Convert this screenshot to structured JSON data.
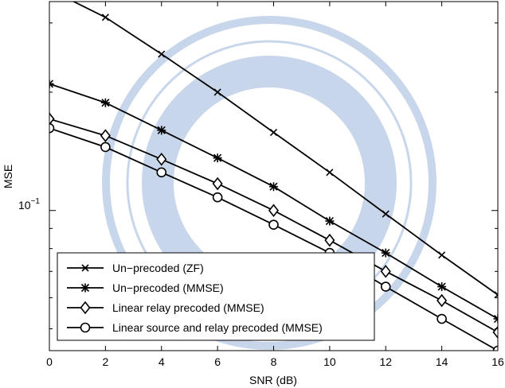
{
  "chart_data": {
    "type": "line",
    "title": "",
    "xlabel": "SNR (dB)",
    "ylabel": "MSE",
    "xlim": [
      0,
      16
    ],
    "ylim": [
      0.044,
      0.34
    ],
    "yscale": "log",
    "grid": false,
    "legend_position": "bottom-left",
    "x_ticks": [
      0,
      2,
      4,
      6,
      8,
      10,
      12,
      14,
      16
    ],
    "x_tick_labels": [
      "0",
      "2",
      "4",
      "6",
      "8",
      "10",
      "12",
      "14",
      "16"
    ],
    "y_major_ticks": [
      0.1
    ],
    "y_major_tick_base": "10",
    "y_major_tick_exponent": "−1",
    "y_minor_ticks": [
      0.05,
      0.06,
      0.07,
      0.08,
      0.09,
      0.2,
      0.3
    ],
    "x": [
      0,
      2,
      4,
      6,
      8,
      10,
      12,
      14,
      16
    ],
    "series": [
      {
        "name": "Un−precoded (ZF)",
        "marker": "x",
        "values": [
          0.365,
          0.31,
          0.25,
          0.2,
          0.158,
          0.125,
          0.098,
          0.077,
          0.061
        ]
      },
      {
        "name": "Un−precoded (MMSE)",
        "marker": "star",
        "values": [
          0.21,
          0.188,
          0.16,
          0.136,
          0.115,
          0.094,
          0.078,
          0.064,
          0.053
        ]
      },
      {
        "name": "Linear relay precoded (MMSE)",
        "marker": "diamond",
        "values": [
          0.171,
          0.155,
          0.135,
          0.117,
          0.1,
          0.084,
          0.07,
          0.059,
          0.049
        ]
      },
      {
        "name": "Linear source and relay precoded (MMSE)",
        "marker": "circle",
        "values": [
          0.162,
          0.145,
          0.125,
          0.108,
          0.092,
          0.078,
          0.064,
          0.053,
          0.044
        ]
      }
    ]
  }
}
